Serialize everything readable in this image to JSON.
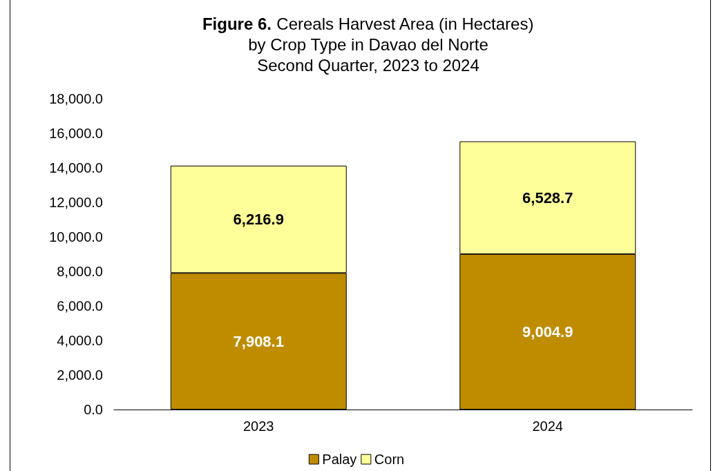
{
  "chart_data": {
    "type": "bar",
    "title": "Figure 6. Cereals Harvest Area (in Hectares)\nby Crop Type in Davao del Norte\nSecond Quarter, 2023 to 2024",
    "categories": [
      "2023",
      "2024"
    ],
    "series": [
      {
        "name": "Palay",
        "color": "#bf8c00",
        "values": [
          7908.1,
          9004.9
        ],
        "value_labels": [
          "7,908.1",
          "9,004.9"
        ]
      },
      {
        "name": "Corn",
        "color": "#ffff99",
        "values": [
          6216.9,
          6528.7
        ],
        "value_labels": [
          "6,216.9",
          "6,528.7"
        ]
      }
    ],
    "stacked": true,
    "grid": false,
    "legend": "bottom",
    "ylim": [
      0,
      18000
    ],
    "yticks": [
      {
        "value": 0,
        "label": "0.0"
      },
      {
        "value": 2000,
        "label": "2,000.0"
      },
      {
        "value": 4000,
        "label": "4,000.0"
      },
      {
        "value": 6000,
        "label": "6,000.0"
      },
      {
        "value": 8000,
        "label": "8,000.0"
      },
      {
        "value": 10000,
        "label": "10,000.0"
      },
      {
        "value": 12000,
        "label": "12,000.0"
      },
      {
        "value": 14000,
        "label": "14,000.0"
      },
      {
        "value": 16000,
        "label": "16,000.0"
      },
      {
        "value": 18000,
        "label": "18,000.0"
      }
    ]
  }
}
